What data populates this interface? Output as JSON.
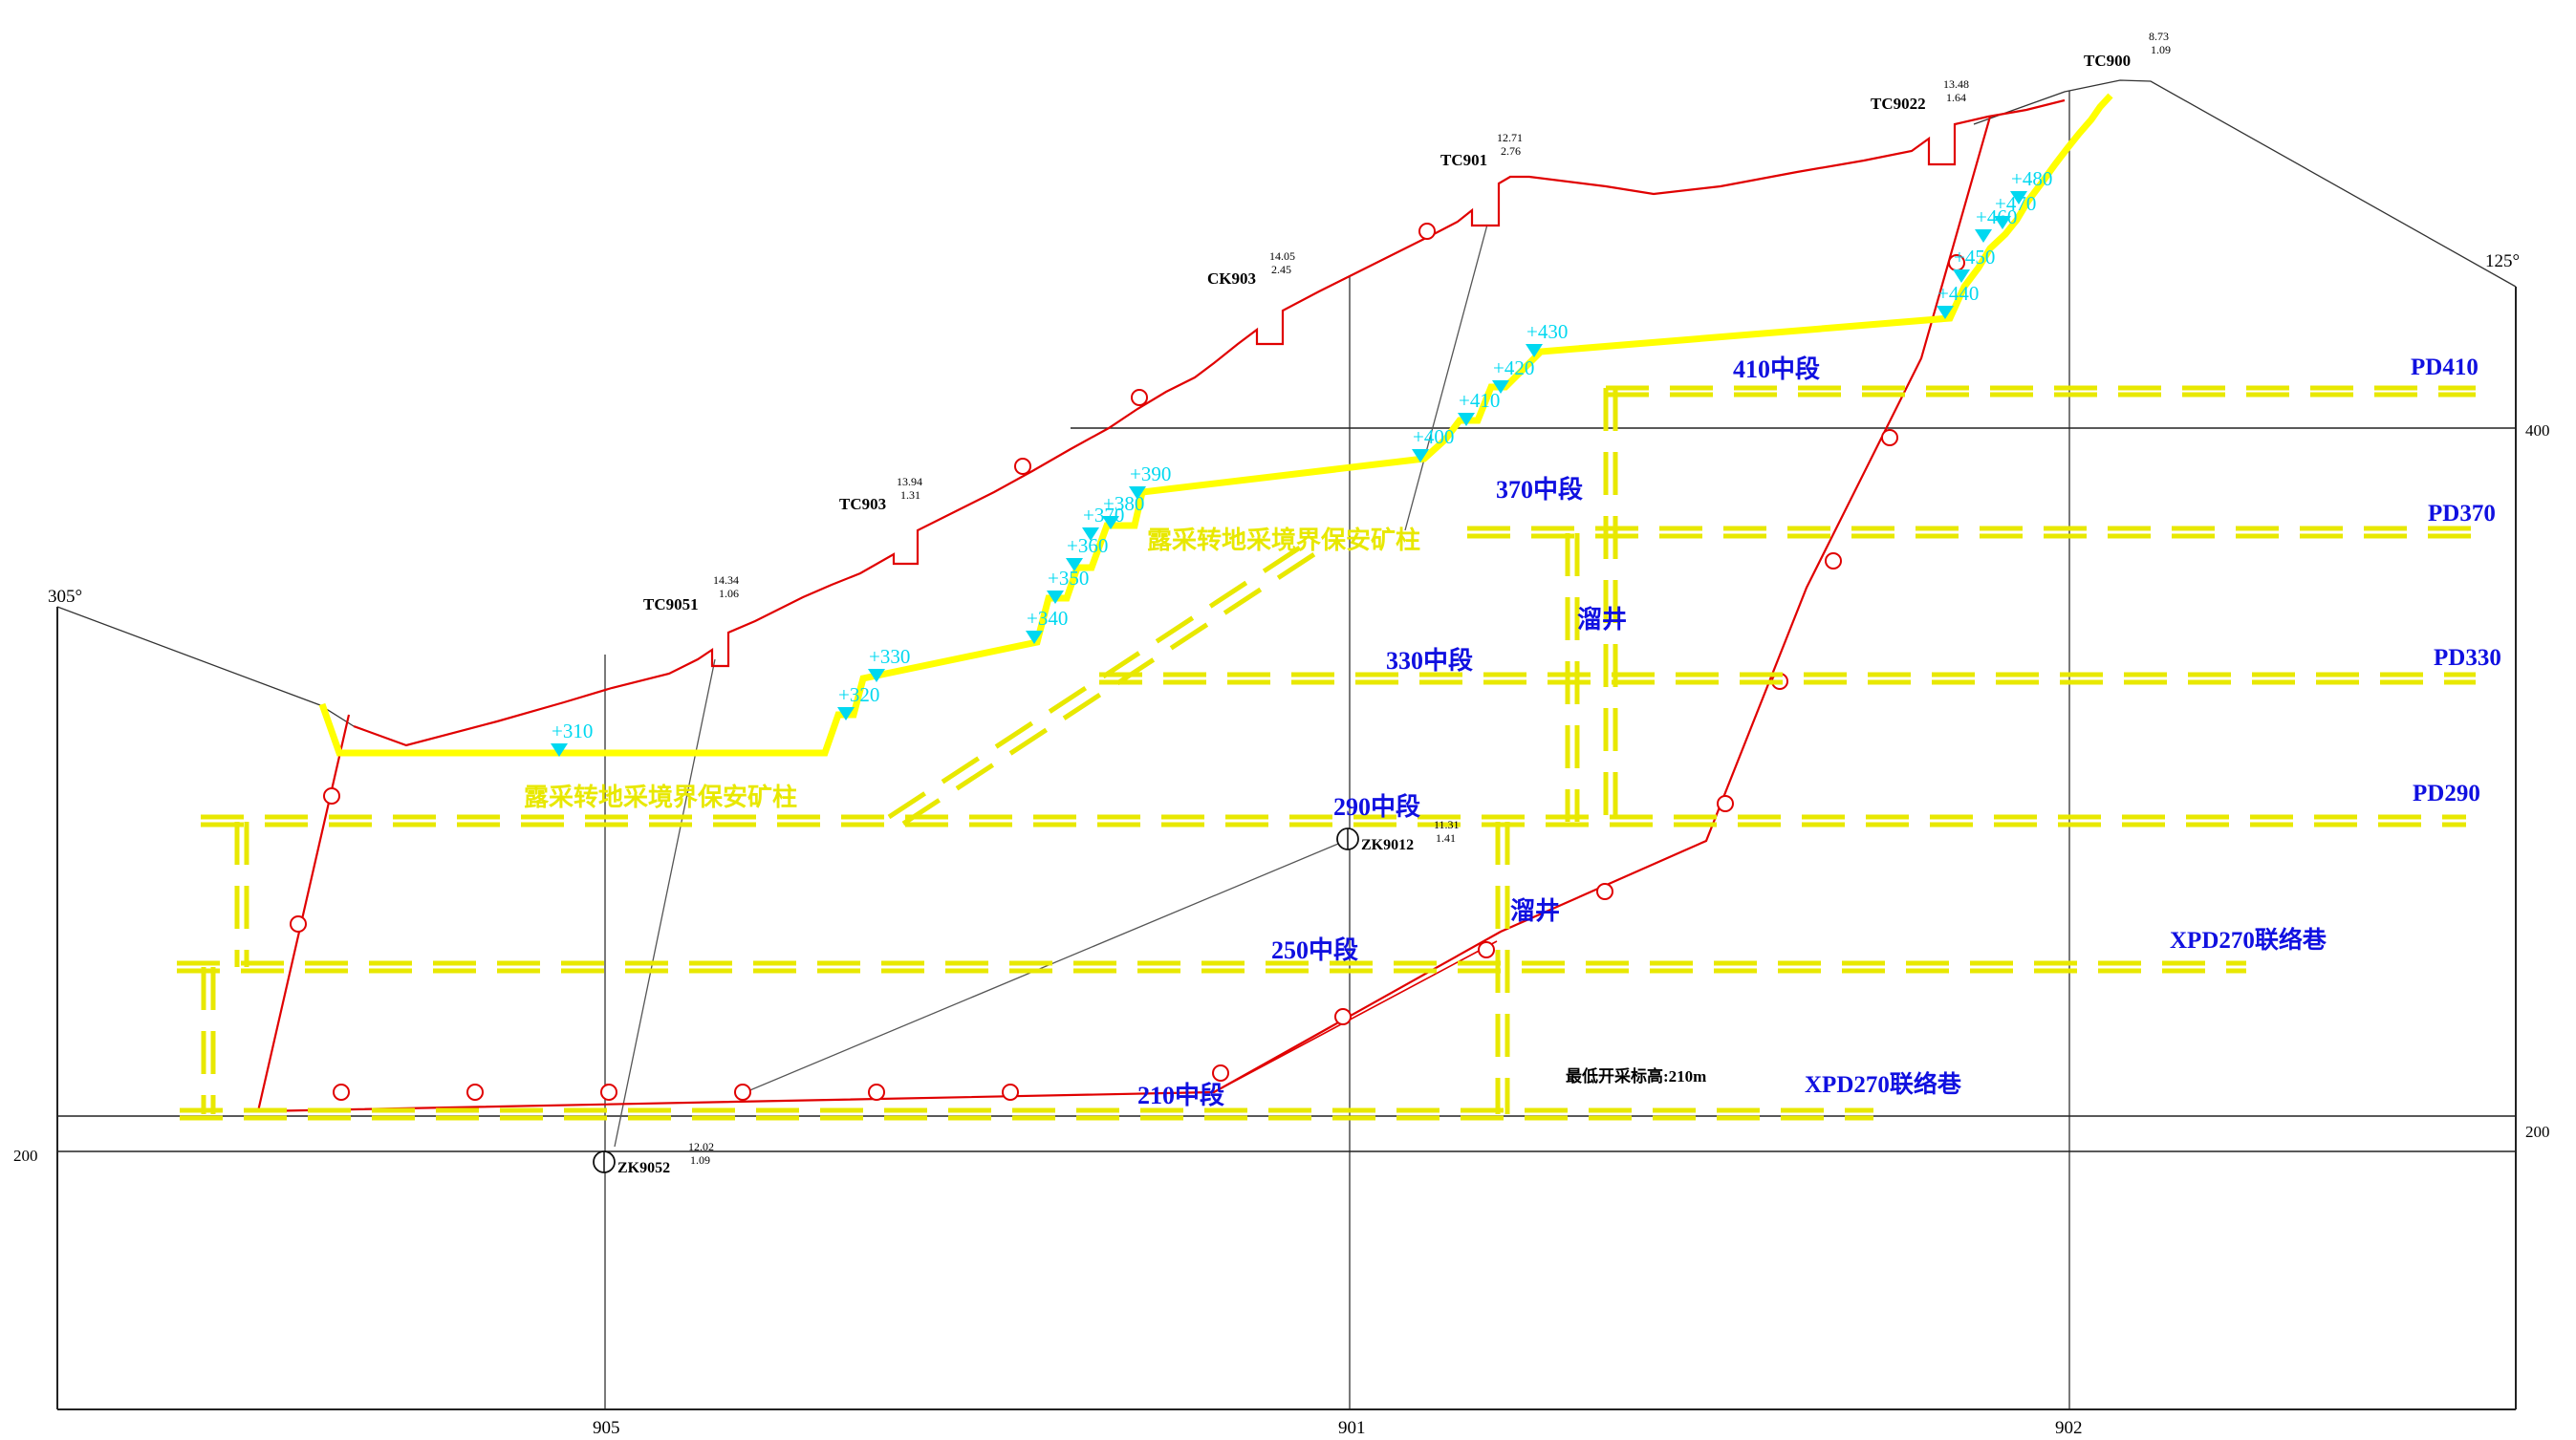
{
  "colors": {
    "orebody": "#e00000",
    "pit_boundary": "#ffff00",
    "dash_yellow": "#e8e800",
    "bench_label": "#00d8f0",
    "level_label": "#1010e0",
    "grid": "#222222"
  },
  "axis": {
    "section_numbers": [
      "905",
      "901",
      "902"
    ],
    "elev_400": "400",
    "elev_200": "200",
    "elev_200_left": "200",
    "angle_left": "305°",
    "angle_right": "125°"
  },
  "drillholes": [
    {
      "id": "TC9051",
      "v1": "14.34",
      "v2": "1.06"
    },
    {
      "id": "TC903",
      "v1": "13.94",
      "v2": "1.31"
    },
    {
      "id": "CK903",
      "v1": "14.05",
      "v2": "2.45"
    },
    {
      "id": "TC901",
      "v1": "12.71",
      "v2": "2.76"
    },
    {
      "id": "TC9022",
      "v1": "13.48",
      "v2": "1.64"
    },
    {
      "id": "TC900",
      "v1": "8.73",
      "v2": "1.09"
    },
    {
      "id": "ZK9012",
      "v1": "11.31",
      "v2": "1.41"
    },
    {
      "id": "ZK9052",
      "v1": "12.02",
      "v2": "1.09"
    }
  ],
  "bench_labels": [
    "+310",
    "+320",
    "+330",
    "+340",
    "+350",
    "+360",
    "+370",
    "+380",
    "+390",
    "+400",
    "+410",
    "+420",
    "+430",
    "+440",
    "+450",
    "+460",
    "+470",
    "+480"
  ],
  "levels": {
    "l410": "410中段",
    "l370": "370中段",
    "l330": "330中段",
    "l290": "290中段",
    "l250": "250中段",
    "l210": "210中段"
  },
  "adits": {
    "pd410": "PD410",
    "pd370": "PD370",
    "pd330": "PD330",
    "pd290": "PD290",
    "xpd_upper": "XPD270联络巷",
    "xpd_lower": "XPD270联络巷"
  },
  "shafts": {
    "upper": "溜井",
    "lower": "溜井"
  },
  "pillar_labels": {
    "upper": "露采转地采境界保安矿柱",
    "lower": "露采转地采境界保安矿柱"
  },
  "min_elevation": "最低开采标高:210m"
}
